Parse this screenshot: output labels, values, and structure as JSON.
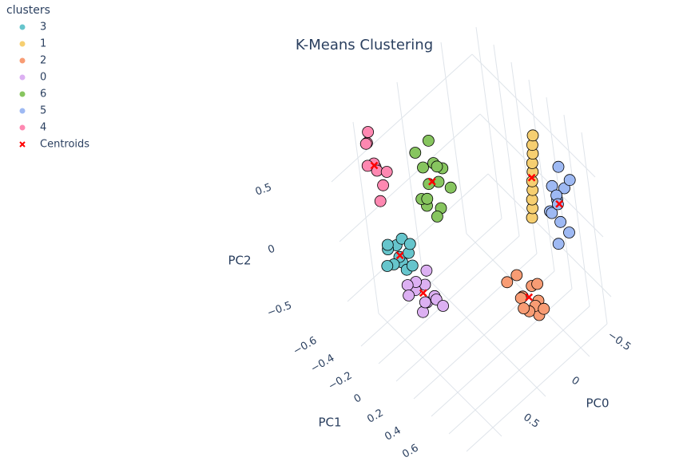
{
  "chart_data": {
    "type": "scatter3d",
    "title": "K-Means Clustering",
    "legend_title": "clusters",
    "legend_position": "top-left",
    "x_label": "PC0",
    "y_label": "PC1",
    "z_label": "PC2",
    "xlim": [
      -0.8,
      0.8
    ],
    "ylim": [
      -0.7,
      0.7
    ],
    "zlim": [
      -0.8,
      0.8
    ],
    "xticks": [
      {
        "value": -0.5,
        "label": "−0.5"
      },
      0,
      0.5
    ],
    "yticks": [
      {
        "value": -0.6,
        "label": "−0.6"
      },
      {
        "value": -0.4,
        "label": "−0.4"
      },
      {
        "value": -0.2,
        "label": "−0.2"
      },
      0,
      0.2,
      0.4,
      0.6
    ],
    "zticks": [
      {
        "value": -0.5,
        "label": "−0.5"
      },
      0,
      0.5
    ],
    "grid": true,
    "series": [
      {
        "name": "3",
        "color": "#66C5CC",
        "x": [
          0.42,
          0.5,
          0.46,
          0.38,
          0.55,
          0.48,
          0.4,
          0.52,
          0.44,
          0.58,
          0.35,
          0.47
        ],
        "y": [
          -0.45,
          -0.3,
          -0.38,
          -0.42,
          -0.35,
          -0.28,
          -0.33,
          -0.44,
          -0.25,
          -0.4,
          -0.36,
          -0.5
        ],
        "z": [
          -0.1,
          -0.08,
          -0.12,
          -0.05,
          -0.1,
          -0.14,
          -0.09,
          -0.06,
          -0.11,
          -0.13,
          -0.07,
          -0.1
        ]
      },
      {
        "name": "1",
        "color": "#F6CF71",
        "x": [
          -0.46,
          -0.47,
          -0.47,
          -0.48,
          -0.48,
          -0.49,
          -0.49,
          -0.5,
          -0.5,
          -0.51
        ],
        "y": [
          0.24,
          0.25,
          0.26,
          0.27,
          0.28,
          0.29,
          0.3,
          0.31,
          0.32,
          0.33
        ],
        "z": [
          0.05,
          0.13,
          0.21,
          0.29,
          0.37,
          0.45,
          0.53,
          0.61,
          0.69,
          0.77
        ]
      },
      {
        "name": "2",
        "color": "#F89C74",
        "x": [
          -0.25,
          -0.15,
          -0.2,
          -0.1,
          -0.28,
          -0.18,
          -0.22,
          -0.12,
          -0.3,
          -0.05,
          -0.16,
          -0.24
        ],
        "y": [
          0.45,
          0.38,
          0.5,
          0.42,
          0.35,
          0.3,
          0.44,
          0.48,
          0.4,
          0.33,
          0.36,
          0.52
        ],
        "z": [
          -0.35,
          -0.3,
          -0.4,
          -0.25,
          -0.32,
          -0.2,
          -0.38,
          -0.33,
          -0.28,
          -0.15,
          -0.42,
          -0.36
        ]
      },
      {
        "name": "0",
        "color": "#DCB0F2",
        "x": [
          0.3,
          0.38,
          0.42,
          0.28,
          0.35,
          0.45,
          0.32,
          0.25,
          0.4,
          0.36,
          0.48,
          0.3
        ],
        "y": [
          -0.3,
          -0.2,
          -0.28,
          -0.22,
          -0.35,
          -0.18,
          -0.15,
          -0.32,
          -0.4,
          -0.25,
          -0.3,
          -0.1
        ],
        "z": [
          -0.4,
          -0.42,
          -0.35,
          -0.45,
          -0.38,
          -0.44,
          -0.4,
          -0.33,
          -0.41,
          -0.47,
          -0.37,
          -0.43
        ]
      },
      {
        "name": "6",
        "color": "#87C55F",
        "x": [
          0.1,
          0.2,
          0.15,
          0.05,
          0.25,
          0.12,
          0.18,
          0.08,
          0.22,
          0.14,
          0.3,
          0.0,
          0.16,
          0.1
        ],
        "y": [
          -0.2,
          -0.25,
          -0.15,
          -0.3,
          -0.2,
          -0.1,
          -0.35,
          -0.22,
          -0.3,
          -0.28,
          -0.12,
          -0.18,
          -0.2,
          -0.26
        ],
        "z": [
          0.4,
          0.55,
          0.25,
          0.45,
          0.3,
          0.6,
          0.2,
          0.5,
          0.65,
          0.35,
          0.45,
          0.3,
          0.15,
          0.7
        ]
      },
      {
        "name": "5",
        "color": "#9EB9F3",
        "x": [
          -0.5,
          -0.55,
          -0.45,
          -0.6,
          -0.48,
          -0.52,
          -0.42,
          -0.58,
          -0.5,
          -0.46,
          -0.54,
          -0.4
        ],
        "y": [
          0.55,
          0.6,
          0.5,
          0.62,
          0.58,
          0.48,
          0.56,
          0.52,
          0.65,
          0.6,
          0.5,
          0.62
        ],
        "z": [
          0.4,
          0.5,
          0.3,
          0.55,
          0.25,
          0.45,
          0.35,
          0.6,
          0.2,
          0.5,
          0.3,
          0.15
        ]
      },
      {
        "name": "4",
        "color": "#FE88B1",
        "x": [
          0.45,
          0.5,
          0.4,
          0.48,
          0.42,
          0.52,
          0.46,
          0.38,
          0.5,
          0.44
        ],
        "y": [
          -0.55,
          -0.5,
          -0.6,
          -0.58,
          -0.52,
          -0.56,
          -0.62,
          -0.5,
          -0.48,
          -0.6
        ],
        "z": [
          0.5,
          0.6,
          0.4,
          0.7,
          0.35,
          0.55,
          0.65,
          0.45,
          0.3,
          0.75
        ]
      },
      {
        "name": "Centroids",
        "color": "#FF0000",
        "marker": "x",
        "x": [
          0.46,
          -0.48,
          -0.19,
          0.36,
          0.15,
          -0.5,
          0.46
        ],
        "y": [
          -0.37,
          0.28,
          0.41,
          -0.26,
          -0.22,
          0.57,
          -0.55
        ],
        "z": [
          -0.1,
          0.4,
          -0.31,
          -0.4,
          0.42,
          0.38,
          0.52
        ]
      }
    ]
  }
}
